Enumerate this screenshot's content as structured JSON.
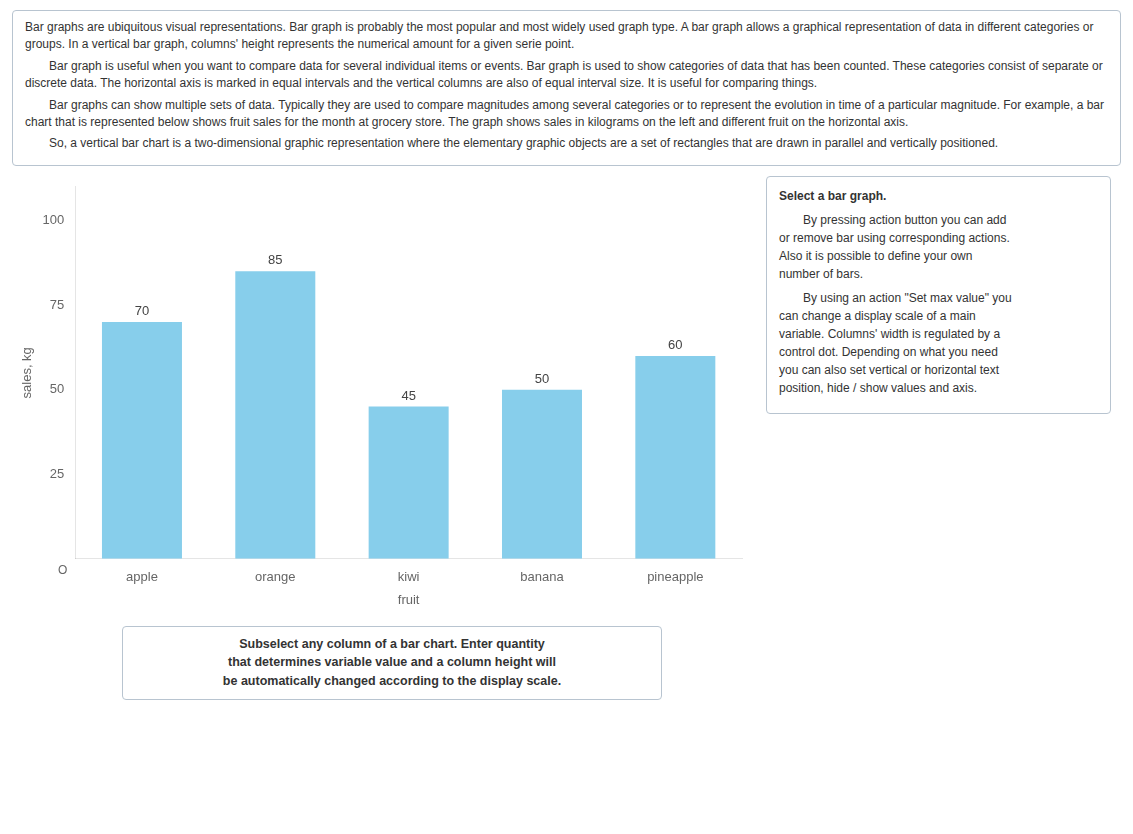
{
  "chart_data": {
    "type": "bar",
    "categories": [
      "apple",
      "orange",
      "kiwi",
      "banana",
      "pineapple"
    ],
    "values": [
      70,
      85,
      45,
      50,
      60
    ],
    "color": "#87CEEB",
    "x_label": "fruit",
    "y_label": "sales, kg",
    "ylim": [
      0,
      110
    ],
    "yticks": [
      25,
      50,
      75,
      100
    ],
    "grid": false,
    "data_labels": true,
    "annotations": [
      "Bar graphs are ubiquitous visual representations. Bar graph is probably the most popular and most widely used graph type. A bar graph allows a graphical representation of data in different categories or groups. In a vertical bar graph, columns' height represents the numerical amount for a given serie point.",
      "Bar graph is useful when you want to compare data for several individual items or events. Bar graph is used to show categories of data that has been counted. These categories consist of separate or discrete data. The horizontal axis is marked in equal intervals and the vertical columns are also of equal interval size. It is useful for comparing things.",
      "Bar graphs can show multiple sets of data. Typically they are used to compare magnitudes among several categories or to represent the evolution in time of a particular magnitude. For example, a bar chart that is represented below shows fruit sales for the month at grocery store. The graph shows sales in kilograms on the left and different fruit on the horizontal axis.",
      "So, a vertical bar chart is a two-dimensional graphic representation where the elementary graphic objects are a set of rectangles that are drawn in parallel and vertically positioned.",
      "Select a bar graph.",
      "By pressing action button you can add\nor remove bar using corresponding actions.\nAlso it is possible to define your own\nnumber of bars.",
      "By using an action \"Set max value\" you\ncan change a display scale of a main\nvariable. Columns' width is regulated by a\ncontrol dot. Depending on what you need\nyou can also set vertical or horizontal text\nposition, hide / show values and axis.",
      "Subselect any column of a bar chart. Enter quantity\nthat determines variable value and a column height will\nbe automatically changed according to the display scale.",
      "O"
    ]
  }
}
